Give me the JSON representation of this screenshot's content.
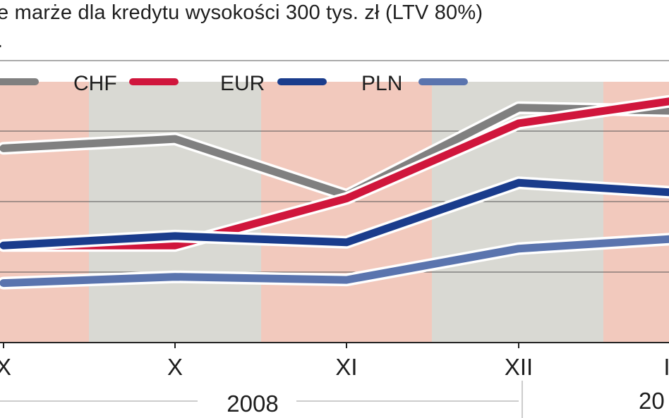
{
  "header": {
    "title": "e marże dla kredytu wysokości 300 tys. zł (LTV 80%)",
    "subtitle": "."
  },
  "colors": {
    "band_pink": "#f2c9bd",
    "band_gray": "#d9d9d3",
    "gridline": "#555555",
    "axis": "#222222"
  },
  "chart_data": {
    "type": "line",
    "categories": [
      "X",
      "X",
      "XI",
      "XII",
      "I"
    ],
    "series": [
      {
        "name": "",
        "color": "#808080",
        "values": [
          3.1,
          3.25,
          2.35,
          3.75,
          3.7
        ]
      },
      {
        "name": "CHF",
        "color": "#d0163c",
        "values": [
          1.55,
          1.55,
          2.3,
          3.5,
          3.85
        ]
      },
      {
        "name": "EUR",
        "color": "#1a3c8c",
        "values": [
          1.55,
          1.7,
          1.6,
          2.55,
          2.4
        ]
      },
      {
        "name": "PLN",
        "color": "#5a74ae",
        "values": [
          0.95,
          1.05,
          1.0,
          1.5,
          1.65
        ]
      }
    ],
    "legend": [
      "CHF",
      "EUR",
      "PLN"
    ],
    "legend_position": "top",
    "year_labels": [
      "2008",
      "20"
    ],
    "ylim": [
      0,
      4.5
    ],
    "grid": true
  }
}
